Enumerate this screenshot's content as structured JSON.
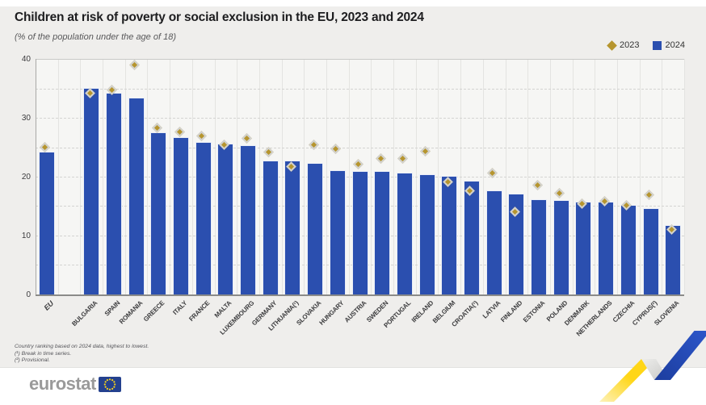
{
  "page": {
    "title": "Children at risk of poverty or social exclusion in the EU, 2023 and 2024",
    "subtitle": "(% of the population under the age of 18)"
  },
  "legend": [
    {
      "label": "2023",
      "marker": "diamond",
      "color": "#B6952E"
    },
    {
      "label": "2024",
      "marker": "square",
      "color": "#2B4FAF"
    }
  ],
  "footnotes": [
    "Country ranking based on 2024 data, highest to lowest.",
    "(¹) Break in time series.",
    "(²) Provisional."
  ],
  "footer": {
    "brand": "eurostat"
  },
  "chart_data": {
    "type": "bar",
    "title": "Children at risk of poverty or social exclusion in the EU, 2023 and 2024",
    "subtitle": "(% of the population under the age of 18)",
    "xlabel": "",
    "ylabel": "% of the population under the age of 18",
    "ylim": [
      0,
      40
    ],
    "yticks": [
      0,
      10,
      20,
      30,
      40
    ],
    "gridlines": "horizontal dashed every 5, vertical per column",
    "legend_position": "top-right",
    "gap_after_first_category": true,
    "categories": [
      "EU",
      "BULGARIA",
      "SPAIN",
      "ROMANIA",
      "GREECE",
      "ITALY",
      "FRANCE",
      "MALTA",
      "LUXEMBOURG",
      "GERMANY",
      "LITHUANIA(¹)",
      "SLOVAKIA",
      "HUNGARY",
      "AUSTRIA",
      "SWEDEN",
      "PORTUGAL",
      "IRELAND",
      "BELGIUM",
      "CROATIA(¹)",
      "LATVIA",
      "FINLAND",
      "ESTONIA",
      "POLAND",
      "DENMARK",
      "NETHERLANDS",
      "CZECHIA",
      "CYPRUS(²)",
      "SLOVENIA"
    ],
    "series": [
      {
        "name": "2023",
        "style": "diamond-marker",
        "color": "#B6952E",
        "values": [
          24.8,
          33.9,
          34.5,
          38.7,
          28.1,
          27.4,
          26.7,
          25.1,
          26.3,
          23.9,
          21.5,
          25.2,
          24.4,
          21.8,
          22.8,
          22.8,
          24.1,
          18.9,
          17.3,
          20.3,
          13.8,
          18.3,
          16.9,
          15.2,
          15.6,
          14.9,
          16.7,
          10.8
        ]
      },
      {
        "name": "2024",
        "style": "bar",
        "color": "#2B4FAF",
        "values": [
          24.2,
          35.1,
          34.3,
          33.5,
          27.6,
          26.8,
          25.9,
          25.7,
          25.4,
          22.8,
          22.8,
          22.3,
          21.1,
          21.0,
          20.9,
          20.7,
          20.4,
          20.2,
          19.3,
          17.7,
          17.1,
          16.2,
          16.0,
          15.8,
          15.7,
          15.2,
          14.7,
          11.8
        ]
      }
    ]
  }
}
